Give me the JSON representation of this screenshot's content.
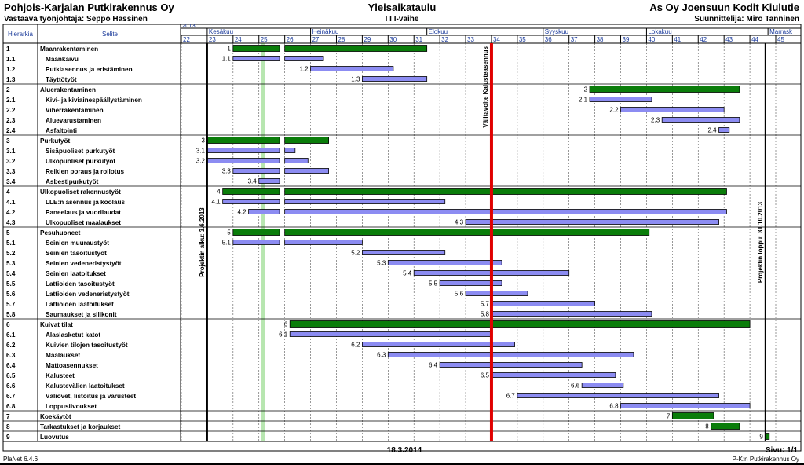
{
  "header": {
    "company": "Pohjois-Karjalan Putkirakennus Oy",
    "foreman": "Vastaava työnjohtaja: Seppo Hassinen",
    "title": "Yleisaikataulu",
    "phase": "I I I-vaihe",
    "client": "As Oy Joensuun Kodit Kiulutie",
    "designer": "Suunnittelija: Miro Tanninen"
  },
  "table_headers": {
    "hierarchy": "Hierarkia",
    "description": "Selite"
  },
  "footer": {
    "date": "18.3.2014",
    "page": "Sivu: 1/1",
    "software": "PlaNet 6.4.6",
    "company_short": "P-K:n Putkirakennus Oy"
  },
  "colors": {
    "summary_bar": "#0a7d0a",
    "task_bar": "#8c8cf2",
    "milestone_line": "#e00000",
    "today_band": "#b7e6b0"
  },
  "chart_data": {
    "type": "gantt",
    "year_label": "2013",
    "weeks": [
      22,
      23,
      24,
      25,
      26,
      27,
      28,
      29,
      30,
      31,
      32,
      33,
      34,
      35,
      36,
      37,
      38,
      39,
      40,
      41,
      42,
      43,
      44,
      45
    ],
    "months": [
      {
        "name": "Kesäkuu",
        "start_week": 23
      },
      {
        "name": "Heinäkuu",
        "start_week": 27
      },
      {
        "name": "Elokuu",
        "start_week": 31.5
      },
      {
        "name": "Syyskuu",
        "start_week": 36
      },
      {
        "name": "Lokakuu",
        "start_week": 40
      },
      {
        "name": "Marrask",
        "start_week": 44.7
      }
    ],
    "project_start": {
      "week": 23,
      "label": "Projektin alku: 3.6.2013"
    },
    "project_end": {
      "week": 44.6,
      "label": "Projektin loppu: 31.10.2013"
    },
    "milestone": {
      "week": 34,
      "label": "Välitavoite Kalusteasennus"
    },
    "today_band_week": 25.1,
    "rows": [
      {
        "id": "1",
        "name": "Maanrakentaminen",
        "summary": true,
        "segments": [
          [
            24,
            25.8
          ],
          [
            26,
            31.5
          ]
        ]
      },
      {
        "id": "1.1",
        "name": "Maankaivu",
        "summary": false,
        "segments": [
          [
            24,
            25.8
          ],
          [
            26,
            27.5
          ]
        ]
      },
      {
        "id": "1.2",
        "name": "Putkiasennus ja eristäminen",
        "summary": false,
        "segments": [
          [
            27,
            30.2
          ]
        ]
      },
      {
        "id": "1.3",
        "name": "Täyttötyöt",
        "summary": false,
        "segments": [
          [
            29,
            31.5
          ]
        ]
      },
      {
        "id": "2",
        "name": "Aluerakentaminen",
        "summary": true,
        "segments": [
          [
            37.8,
            43.6
          ]
        ]
      },
      {
        "id": "2.1",
        "name": "Kivi- ja kiviainespäällystäminen",
        "summary": false,
        "segments": [
          [
            37.8,
            40.2
          ]
        ]
      },
      {
        "id": "2.2",
        "name": "Viherrakentaminen",
        "summary": false,
        "segments": [
          [
            39,
            43
          ]
        ]
      },
      {
        "id": "2.3",
        "name": "Aluevarustaminen",
        "summary": false,
        "segments": [
          [
            40.6,
            43.6
          ]
        ]
      },
      {
        "id": "2.4",
        "name": "Asfaltointi",
        "summary": false,
        "segments": [
          [
            42.8,
            43.2
          ]
        ]
      },
      {
        "id": "3",
        "name": "Purkutyöt",
        "summary": true,
        "segments": [
          [
            23,
            25.8
          ],
          [
            26,
            27.7
          ]
        ]
      },
      {
        "id": "3.1",
        "name": "Sisäpuoliset purkutyöt",
        "summary": false,
        "segments": [
          [
            23,
            25.8
          ],
          [
            26,
            26.4
          ]
        ]
      },
      {
        "id": "3.2",
        "name": "Ulkopuoliset purkutyöt",
        "summary": false,
        "segments": [
          [
            23,
            25.8
          ],
          [
            26,
            26.9
          ]
        ]
      },
      {
        "id": "3.3",
        "name": "Reikien poraus ja roilotus",
        "summary": false,
        "segments": [
          [
            24,
            25.8
          ],
          [
            26,
            27.7
          ]
        ]
      },
      {
        "id": "3.4",
        "name": "Asbestipurkutyöt",
        "summary": false,
        "segments": [
          [
            25,
            25.8
          ]
        ]
      },
      {
        "id": "4",
        "name": "Ulkopuoliset rakennustyöt",
        "summary": true,
        "segments": [
          [
            23.6,
            25.8
          ],
          [
            26,
            43.1
          ]
        ]
      },
      {
        "id": "4.1",
        "name": "LLE:n asennus ja koolaus",
        "summary": false,
        "segments": [
          [
            23.6,
            25.8
          ],
          [
            26,
            32.2
          ]
        ]
      },
      {
        "id": "4.2",
        "name": "Paneelaus ja vuorilaudat",
        "summary": false,
        "segments": [
          [
            24.6,
            25.8
          ],
          [
            26,
            43.1
          ]
        ]
      },
      {
        "id": "4.3",
        "name": "Ulkopuoliset maalaukset",
        "summary": false,
        "segments": [
          [
            33,
            42.8
          ]
        ]
      },
      {
        "id": "5",
        "name": "Pesuhuoneet",
        "summary": true,
        "segments": [
          [
            24,
            25.8
          ],
          [
            26,
            40.1
          ]
        ]
      },
      {
        "id": "5.1",
        "name": "Seinien muuraustyöt",
        "summary": false,
        "segments": [
          [
            24,
            25.8
          ],
          [
            26,
            29
          ]
        ]
      },
      {
        "id": "5.2",
        "name": "Seinien tasoitustyöt",
        "summary": false,
        "segments": [
          [
            29,
            32.2
          ]
        ]
      },
      {
        "id": "5.3",
        "name": "Seinien vedeneristystyöt",
        "summary": false,
        "segments": [
          [
            30,
            34.4
          ]
        ]
      },
      {
        "id": "5.4",
        "name": "Seinien laatoitukset",
        "summary": false,
        "segments": [
          [
            31,
            37
          ]
        ]
      },
      {
        "id": "5.5",
        "name": "Lattioiden tasoitustyöt",
        "summary": false,
        "segments": [
          [
            32,
            34.4
          ]
        ]
      },
      {
        "id": "5.6",
        "name": "Lattioiden vedeneristystyöt",
        "summary": false,
        "segments": [
          [
            33,
            35.4
          ]
        ]
      },
      {
        "id": "5.7",
        "name": "Lattioiden laatoitukset",
        "summary": false,
        "segments": [
          [
            34,
            38
          ]
        ]
      },
      {
        "id": "5.8",
        "name": "Saumaukset ja silikonit",
        "summary": false,
        "segments": [
          [
            34,
            40.2
          ]
        ]
      },
      {
        "id": "6",
        "name": "Kuivat tilat",
        "summary": true,
        "segments": [
          [
            26.2,
            44
          ]
        ]
      },
      {
        "id": "6.1",
        "name": "Alaslasketut katot",
        "summary": false,
        "segments": [
          [
            26.2,
            34
          ]
        ]
      },
      {
        "id": "6.2",
        "name": "Kuivien tilojen tasoitustyöt",
        "summary": false,
        "segments": [
          [
            29,
            34.9
          ]
        ]
      },
      {
        "id": "6.3",
        "name": "Maalaukset",
        "summary": false,
        "segments": [
          [
            30,
            39.5
          ]
        ]
      },
      {
        "id": "6.4",
        "name": "Mattoasennukset",
        "summary": false,
        "segments": [
          [
            32,
            37.5
          ]
        ]
      },
      {
        "id": "6.5",
        "name": "Kalusteet",
        "summary": false,
        "segments": [
          [
            34,
            38.8
          ]
        ]
      },
      {
        "id": "6.6",
        "name": "Kalustevälien laatoitukset",
        "summary": false,
        "segments": [
          [
            37.5,
            39.1
          ]
        ]
      },
      {
        "id": "6.7",
        "name": "Väliovet, listoitus ja varusteet",
        "summary": false,
        "segments": [
          [
            35,
            42.8
          ]
        ]
      },
      {
        "id": "6.8",
        "name": "Loppusiivoukset",
        "summary": false,
        "segments": [
          [
            39,
            44
          ]
        ]
      },
      {
        "id": "7",
        "name": "Koekäytöt",
        "summary": true,
        "segments": [
          [
            41,
            42.6
          ]
        ]
      },
      {
        "id": "8",
        "name": "Tarkastukset ja korjaukset",
        "summary": true,
        "segments": [
          [
            42.5,
            43.6
          ]
        ]
      },
      {
        "id": "9",
        "name": "Luovutus",
        "summary": true,
        "segments": [
          [
            44.6,
            44.75
          ]
        ]
      }
    ]
  }
}
